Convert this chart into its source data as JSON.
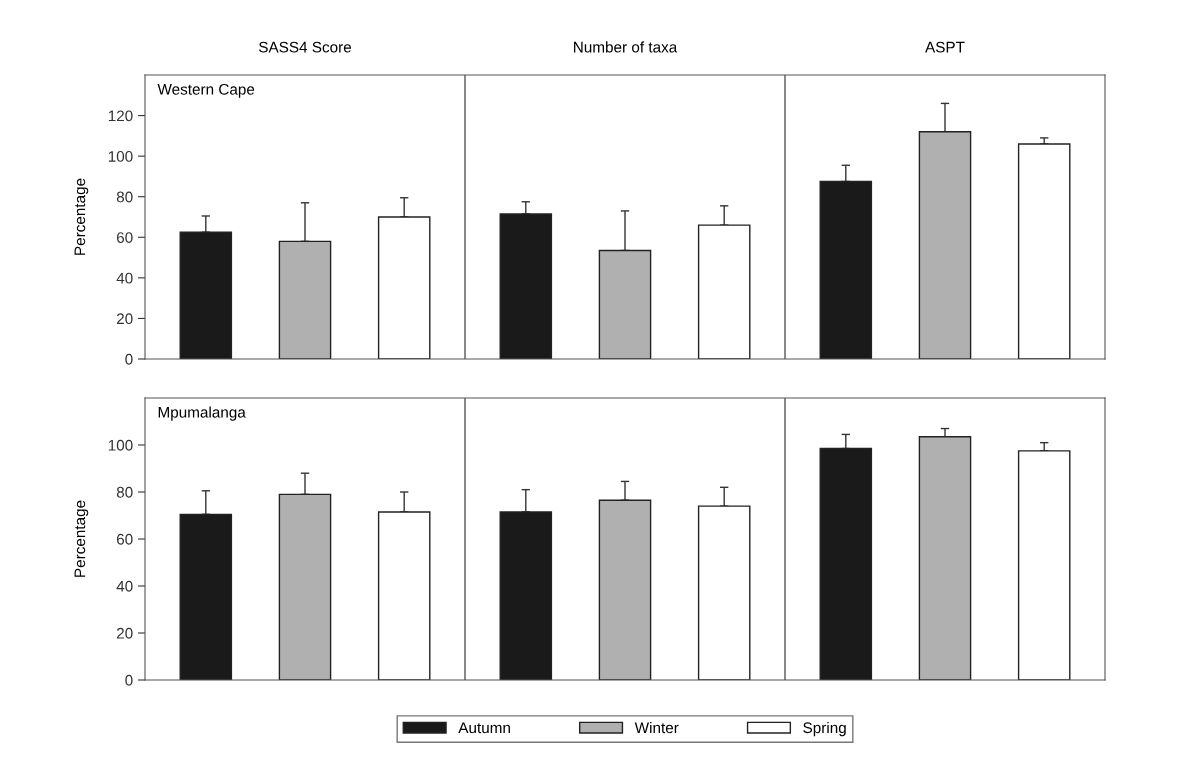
{
  "chart_data": [
    {
      "type": "bar",
      "ylabel": "Percentage",
      "annotations": [
        "Western Cape"
      ],
      "categories": [
        "SASS4 Score",
        "Number of taxa",
        "ASPT"
      ],
      "ylim": [
        0,
        140
      ],
      "yticks": [
        0,
        20,
        40,
        60,
        80,
        100,
        120
      ],
      "grid": false,
      "series": [
        {
          "color": "#1a1a1a",
          "values": [
            62.5,
            71.5,
            87.5
          ],
          "errors": [
            [
              62.5,
              70.5
            ],
            [
              71.5,
              77.5
            ],
            [
              87.5,
              95.5
            ]
          ]
        },
        {
          "color": "#b0b0b0",
          "values": [
            58,
            53.5,
            112
          ],
          "errors": [
            [
              58,
              77
            ],
            [
              53.5,
              73
            ],
            [
              112,
              126
            ]
          ]
        },
        {
          "color": "#ffffff",
          "values": [
            70,
            66,
            106
          ],
          "errors": [
            [
              70,
              79.5
            ],
            [
              66,
              75.5
            ],
            [
              106,
              109
            ]
          ]
        }
      ]
    },
    {
      "type": "bar",
      "ylabel": "Percentage",
      "annotations": [
        "Mpumalanga"
      ],
      "categories": [
        null,
        null,
        null
      ],
      "ylim": [
        0,
        120
      ],
      "yticks": [
        0,
        20,
        40,
        60,
        80,
        100
      ],
      "tick_labels": "y",
      "grid": false,
      "legend": "bottom",
      "series": [
        {
          "name": "Autumn",
          "color": "#1a1a1a",
          "values": [
            70.5,
            71.5,
            98.5
          ],
          "errors": [
            [
              70.5,
              80.5
            ],
            [
              71.5,
              81
            ],
            [
              98.5,
              104.5
            ]
          ]
        },
        {
          "name": "Winter",
          "color": "#b0b0b0",
          "values": [
            79,
            76.5,
            103.5
          ],
          "errors": [
            [
              79,
              88
            ],
            [
              76.5,
              84.5
            ],
            [
              103.5,
              107
            ]
          ]
        },
        {
          "name": "Spring",
          "color": "#ffffff",
          "values": [
            71.5,
            74,
            97.5
          ],
          "errors": [
            [
              71.5,
              80
            ],
            [
              74,
              82
            ],
            [
              97.5,
              101
            ]
          ]
        }
      ]
    }
  ]
}
